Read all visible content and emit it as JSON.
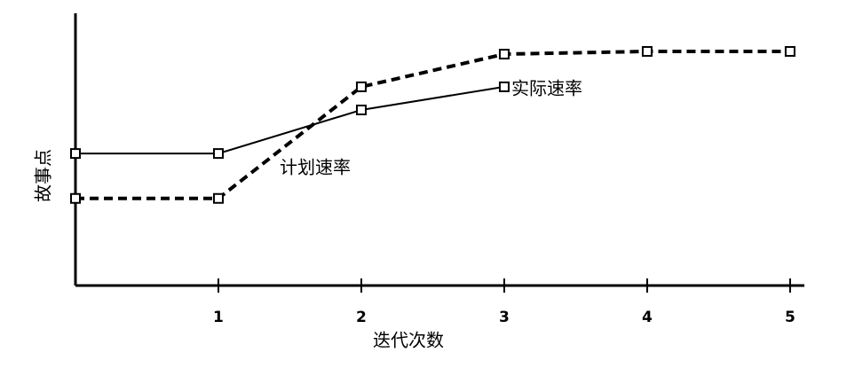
{
  "chart_data": {
    "type": "line",
    "x_label": "迭代次数",
    "y_label": "故事点",
    "xlim": [
      0,
      5.1
    ],
    "xticks": [
      1,
      2,
      3,
      4,
      5
    ],
    "ylim": [
      0,
      10
    ],
    "series": [
      {
        "name": "实际速率",
        "color": "#000000",
        "style": "solid",
        "x": [
          0,
          1,
          2,
          3
        ],
        "values": [
          4.85,
          4.85,
          6.45,
          7.3
        ]
      },
      {
        "name": "计划速率",
        "color": "#000000",
        "style": "dashed",
        "x": [
          0,
          1,
          2,
          3,
          4,
          5
        ],
        "values": [
          3.2,
          3.2,
          7.3,
          8.5,
          8.6,
          8.6
        ]
      }
    ]
  }
}
